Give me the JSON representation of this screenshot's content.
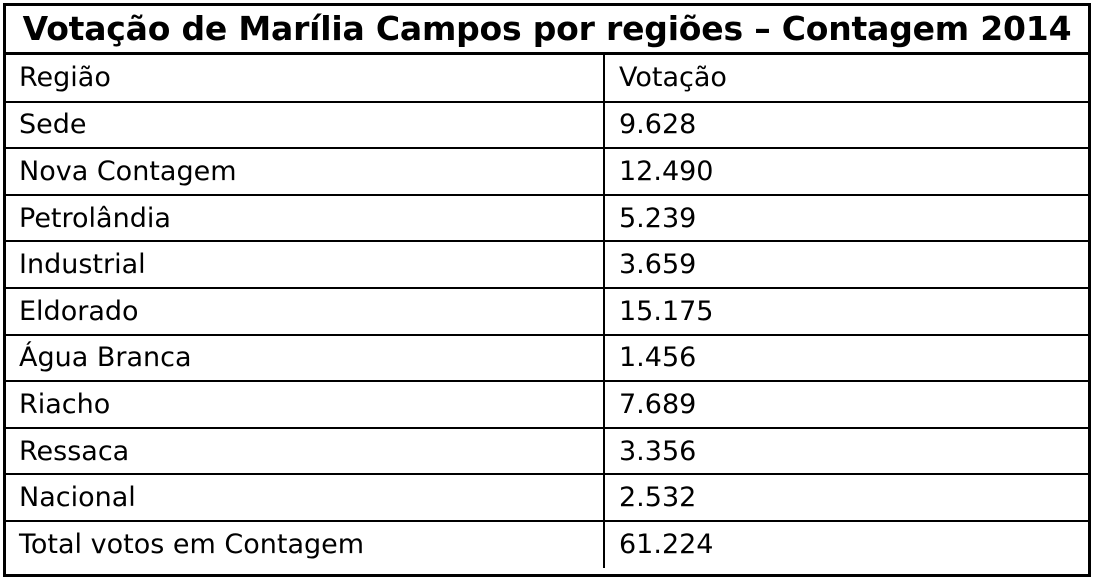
{
  "title": "Votação de Marília Campos por regiões – Contagem 2014",
  "columns": [
    "Região",
    "Votação"
  ],
  "rows": [
    {
      "region": "Sede",
      "votes": "9.628"
    },
    {
      "region": "Nova Contagem",
      "votes": "12.490"
    },
    {
      "region": "Petrolândia",
      "votes": "5.239"
    },
    {
      "region": "Industrial",
      "votes": "3.659"
    },
    {
      "region": "Eldorado",
      "votes": "15.175"
    },
    {
      "region": "Água Branca",
      "votes": "1.456"
    },
    {
      "region": "Riacho",
      "votes": "7.689"
    },
    {
      "region": "Ressaca",
      "votes": "3.356"
    },
    {
      "region": "Nacional",
      "votes": "2.532"
    },
    {
      "region": "Total votos em Contagem",
      "votes": "61.224"
    }
  ]
}
